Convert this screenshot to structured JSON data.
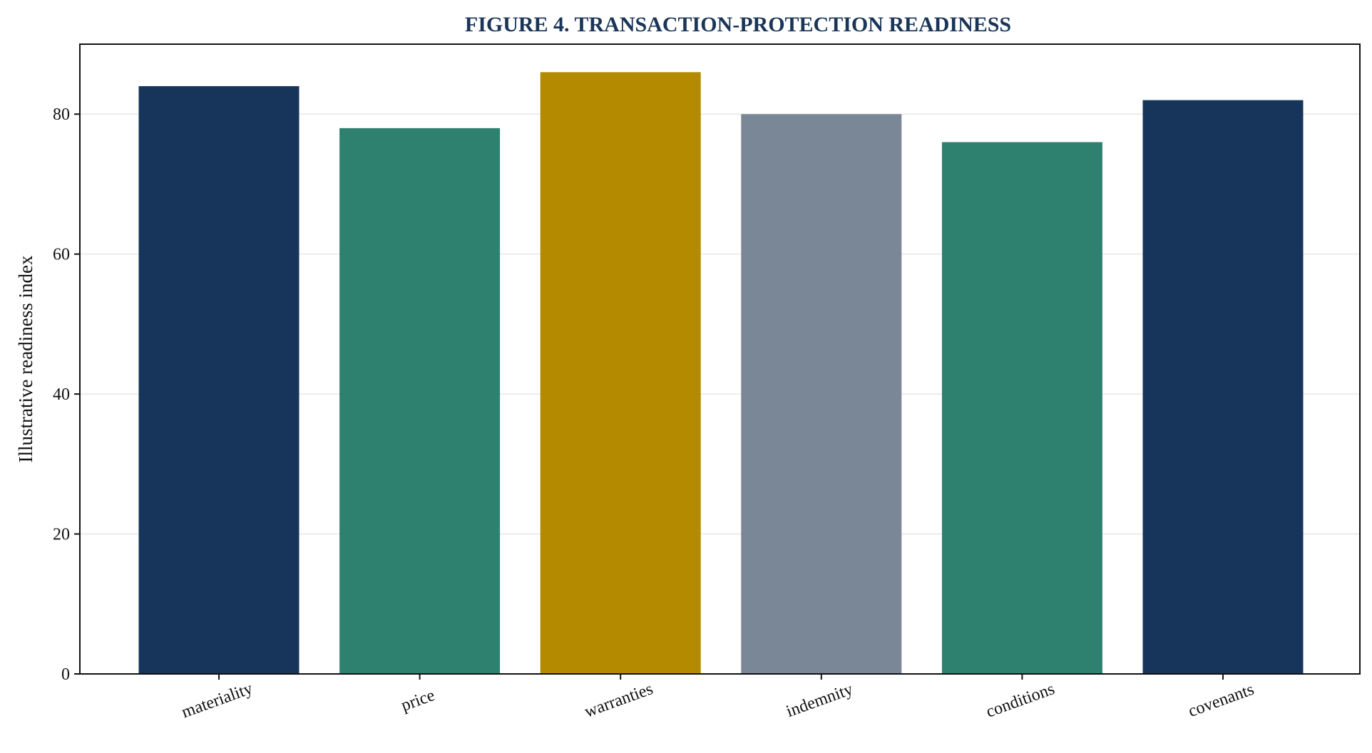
{
  "chart_data": {
    "type": "bar",
    "title": "FIGURE 4. TRANSACTION-PROTECTION READINESS",
    "xlabel": "",
    "ylabel": "Illustrative readiness index",
    "categories": [
      "materiality",
      "price",
      "warranties",
      "indemnity",
      "conditions",
      "covenants"
    ],
    "values": [
      84,
      78,
      86,
      80,
      76,
      82
    ],
    "colors": [
      "#17355b",
      "#2e806f",
      "#b38a00",
      "#7a8796",
      "#2e806f",
      "#17355b"
    ],
    "ylim": [
      0,
      90
    ],
    "yticks": [
      0,
      20,
      40,
      60,
      80
    ],
    "grid": "horizontal",
    "legend": "none"
  }
}
